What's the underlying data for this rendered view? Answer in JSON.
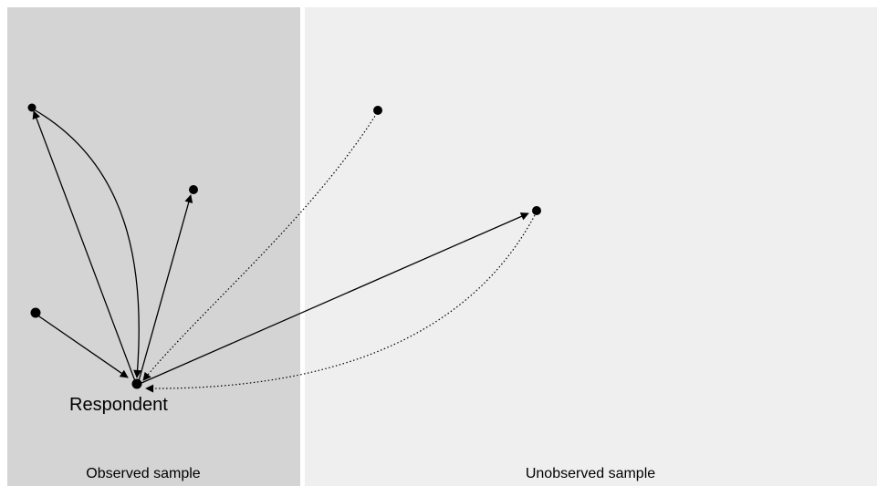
{
  "regions": {
    "observed_label": "Observed sample",
    "unobserved_label": "Unobserved sample"
  },
  "nodes": {
    "respondent_label": "Respondent"
  },
  "colors": {
    "observed_background": "#d4d4d4",
    "unobserved_background": "#efefef",
    "ink": "#000000"
  }
}
